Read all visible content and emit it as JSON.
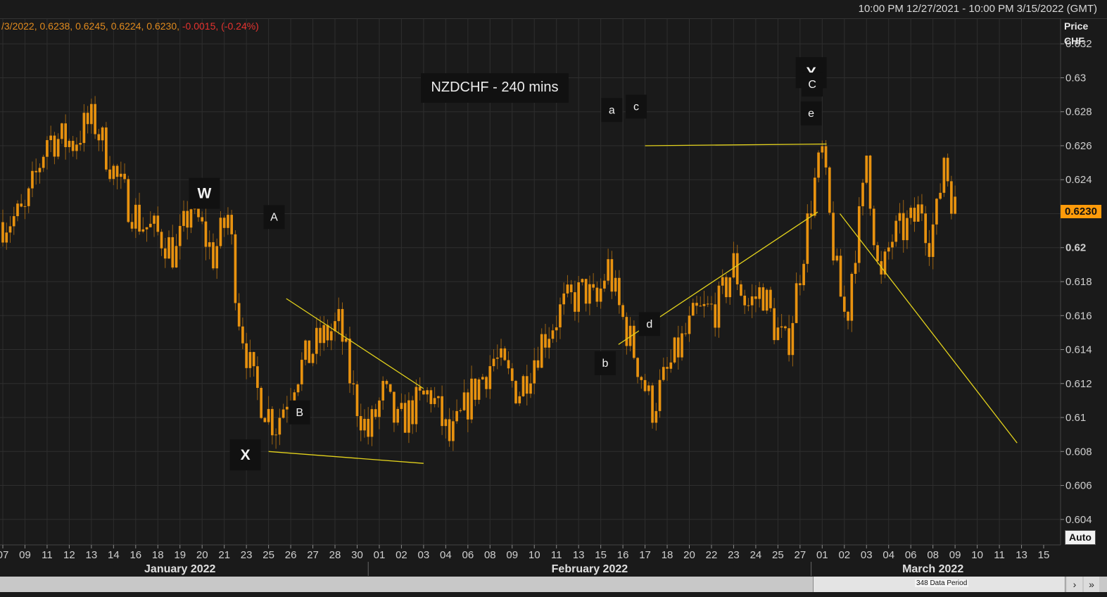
{
  "header": {
    "date_range": "10:00 PM 12/27/2021 - 10:00 PM 3/15/2022 (GMT)",
    "ohlc_main": "/3/2022, 0.6238, 0.6245, 0.6224, 0.6230, ",
    "ohlc_change": "-0.0015, (-0.24%)"
  },
  "axis": {
    "title_line1": "Price",
    "title_line2": "CHF",
    "last_price": "0.6230",
    "auto_label": "Auto"
  },
  "scroll": {
    "period_label": "348 Data Period",
    "next_icon": "›",
    "end_icon": "»"
  },
  "colors": {
    "background": "#1a1a1a",
    "candle": "#e8920f",
    "wick": "#9a6212",
    "trendline": "#e3d21c",
    "label_box": "#111111",
    "axis_text": "#cfcfcf",
    "grid": "#2e2e2e",
    "price_tag": "#ff9b0a",
    "negative": "#e5332f"
  },
  "chart_data": {
    "type": "candlestick",
    "title": "NZDCHF - 240 mins",
    "instrument": "NZDCHF",
    "interval": "240 mins",
    "currency": "CHF",
    "last": 0.623,
    "ylim": [
      0.6025,
      0.6335
    ],
    "yticks": [
      {
        "v": 0.632,
        "label": "0.632"
      },
      {
        "v": 0.63,
        "label": "0.63"
      },
      {
        "v": 0.628,
        "label": "0.628"
      },
      {
        "v": 0.626,
        "label": "0.626"
      },
      {
        "v": 0.624,
        "label": "0.624"
      },
      {
        "v": 0.622,
        "label": "0.622"
      },
      {
        "v": 0.62,
        "label": "0.62",
        "bold": true
      },
      {
        "v": 0.618,
        "label": "0.618"
      },
      {
        "v": 0.616,
        "label": "0.616"
      },
      {
        "v": 0.614,
        "label": "0.614"
      },
      {
        "v": 0.612,
        "label": "0.612"
      },
      {
        "v": 0.61,
        "label": "0.61"
      },
      {
        "v": 0.608,
        "label": "0.608"
      },
      {
        "v": 0.606,
        "label": "0.606"
      },
      {
        "v": 0.604,
        "label": "0.604"
      }
    ],
    "days": [
      "07",
      "09",
      "11",
      "12",
      "13",
      "14",
      "16",
      "18",
      "19",
      "20",
      "21",
      "23",
      "25",
      "26",
      "27",
      "28",
      "30",
      "01",
      "02",
      "03",
      "04",
      "06",
      "08",
      "09",
      "10",
      "11",
      "13",
      "15",
      "16",
      "17",
      "18",
      "20",
      "22",
      "23",
      "24",
      "25",
      "27",
      "01",
      "02",
      "03",
      "04",
      "06",
      "08",
      "09",
      "10",
      "11",
      "13",
      "15"
    ],
    "months": [
      {
        "label": "January 2022",
        "start": 0,
        "end": 16
      },
      {
        "label": "February 2022",
        "start": 17,
        "end": 36
      },
      {
        "label": "March 2022",
        "start": 37,
        "end": 47
      }
    ],
    "last_data_day_index": 39,
    "bars_per_day": 6,
    "anchors": [
      {
        "d": 0.0,
        "v": 0.6215
      },
      {
        "d": 1.0,
        "v": 0.622
      },
      {
        "d": 2.0,
        "v": 0.6265
      },
      {
        "d": 3.2,
        "v": 0.6262
      },
      {
        "d": 3.6,
        "v": 0.627
      },
      {
        "d": 4.1,
        "v": 0.6275
      },
      {
        "d": 5.3,
        "v": 0.6235
      },
      {
        "d": 6.2,
        "v": 0.6215
      },
      {
        "d": 7.3,
        "v": 0.6205
      },
      {
        "d": 7.8,
        "v": 0.6195
      },
      {
        "d": 8.5,
        "v": 0.6225
      },
      {
        "d": 9.5,
        "v": 0.6195
      },
      {
        "d": 10.2,
        "v": 0.622
      },
      {
        "d": 10.6,
        "v": 0.6165
      },
      {
        "d": 11.3,
        "v": 0.612
      },
      {
        "d": 12.3,
        "v": 0.6095
      },
      {
        "d": 13.2,
        "v": 0.6125
      },
      {
        "d": 14.3,
        "v": 0.6145
      },
      {
        "d": 15.2,
        "v": 0.6155
      },
      {
        "d": 15.8,
        "v": 0.6115
      },
      {
        "d": 16.5,
        "v": 0.609
      },
      {
        "d": 17.2,
        "v": 0.6115
      },
      {
        "d": 17.8,
        "v": 0.6095
      },
      {
        "d": 18.5,
        "v": 0.6105
      },
      {
        "d": 19.3,
        "v": 0.6115
      },
      {
        "d": 20.2,
        "v": 0.6085
      },
      {
        "d": 21.2,
        "v": 0.6115
      },
      {
        "d": 22.2,
        "v": 0.6135
      },
      {
        "d": 23.3,
        "v": 0.6115
      },
      {
        "d": 24.3,
        "v": 0.6145
      },
      {
        "d": 25.3,
        "v": 0.6165
      },
      {
        "d": 26.3,
        "v": 0.6175
      },
      {
        "d": 26.8,
        "v": 0.6165
      },
      {
        "d": 27.3,
        "v": 0.619
      },
      {
        "d": 27.8,
        "v": 0.6165
      },
      {
        "d": 28.6,
        "v": 0.6135
      },
      {
        "d": 29.3,
        "v": 0.6105
      },
      {
        "d": 29.8,
        "v": 0.612
      },
      {
        "d": 30.5,
        "v": 0.614
      },
      {
        "d": 31.3,
        "v": 0.616
      },
      {
        "d": 32.3,
        "v": 0.6165
      },
      {
        "d": 33.0,
        "v": 0.619
      },
      {
        "d": 33.6,
        "v": 0.6165
      },
      {
        "d": 34.3,
        "v": 0.6175
      },
      {
        "d": 34.8,
        "v": 0.6155
      },
      {
        "d": 35.4,
        "v": 0.614
      },
      {
        "d": 36.1,
        "v": 0.6195
      },
      {
        "d": 36.6,
        "v": 0.6235
      },
      {
        "d": 37.0,
        "v": 0.6255
      },
      {
        "d": 37.3,
        "v": 0.622
      },
      {
        "d": 37.7,
        "v": 0.618
      },
      {
        "d": 38.1,
        "v": 0.6155
      },
      {
        "d": 38.4,
        "v": 0.6195
      },
      {
        "d": 38.8,
        "v": 0.6225
      },
      {
        "d": 39.0,
        "v": 0.6255
      },
      {
        "d": 39.3,
        "v": 0.6215
      },
      {
        "d": 39.6,
        "v": 0.6175
      },
      {
        "d": 40.1,
        "v": 0.6205
      },
      {
        "d": 40.6,
        "v": 0.621
      },
      {
        "d": 41.1,
        "v": 0.6215
      },
      {
        "d": 41.5,
        "v": 0.6225
      },
      {
        "d": 41.8,
        "v": 0.6205
      },
      {
        "d": 42.2,
        "v": 0.622
      },
      {
        "d": 42.5,
        "v": 0.6255
      },
      {
        "d": 42.8,
        "v": 0.6232
      },
      {
        "d": 43.0,
        "v": 0.623
      }
    ],
    "wave_labels": [
      {
        "text": "W",
        "d": 9.1,
        "v": 0.6232,
        "size": "big"
      },
      {
        "text": "X",
        "d": 10.95,
        "v": 0.6078,
        "size": "big"
      },
      {
        "text": "Y",
        "d": 36.5,
        "v": 0.6303,
        "size": "big"
      },
      {
        "text": "A",
        "d": 12.25,
        "v": 0.6218,
        "size": "small"
      },
      {
        "text": "B",
        "d": 13.4,
        "v": 0.6103,
        "size": "small"
      },
      {
        "text": "C",
        "d": 36.55,
        "v": 0.6296,
        "size": "small"
      },
      {
        "text": "a",
        "d": 27.5,
        "v": 0.6281,
        "size": "small"
      },
      {
        "text": "b",
        "d": 27.2,
        "v": 0.6132,
        "size": "small"
      },
      {
        "text": "c",
        "d": 28.6,
        "v": 0.6283,
        "size": "small"
      },
      {
        "text": "d",
        "d": 29.2,
        "v": 0.6155,
        "size": "small"
      },
      {
        "text": "e",
        "d": 36.5,
        "v": 0.6279,
        "size": "small"
      }
    ],
    "trend_lines": [
      {
        "d1": 12.8,
        "v1": 0.617,
        "d2": 19.0,
        "v2": 0.6117
      },
      {
        "d1": 12.0,
        "v1": 0.608,
        "d2": 19.0,
        "v2": 0.6073
      },
      {
        "d1": 27.8,
        "v1": 0.6143,
        "d2": 36.8,
        "v2": 0.6221
      },
      {
        "d1": 29.0,
        "v1": 0.626,
        "d2": 37.2,
        "v2": 0.6261
      },
      {
        "d1": 37.8,
        "v1": 0.622,
        "d2": 45.8,
        "v2": 0.6085
      }
    ]
  }
}
